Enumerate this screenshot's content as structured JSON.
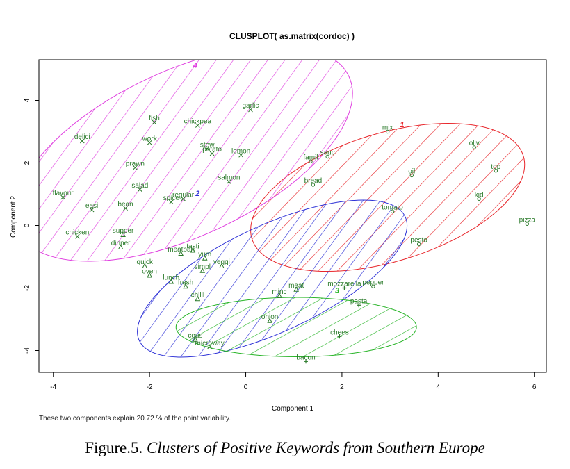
{
  "figure": {
    "label": "Figure.5.",
    "caption": "Clusters of Positive Keywords from Southern Europe",
    "footnote": "These two components explain 20.72 % of the point variability."
  },
  "chart_data": {
    "type": "scatter",
    "title": "CLUSPLOT( as.matrix(cordoc) )",
    "xlabel": "Component 1",
    "ylabel": "Component 2",
    "xlim": [
      -4.3,
      6.25
    ],
    "ylim": [
      -4.7,
      5.3
    ],
    "xticks": [
      -4,
      -2,
      0,
      2,
      4,
      6
    ],
    "yticks": [
      -4,
      -2,
      0,
      2,
      4
    ],
    "grid": false,
    "colors": {
      "c1": "#e8262b",
      "c2": "#2b2fd6",
      "c3": "#27b427",
      "c4": "#e040e0",
      "points": "#2a7a2a"
    },
    "clusters": [
      {
        "label": "1",
        "color": "#e8262b",
        "cx": 2.95,
        "cy": 0.9,
        "rx": 2.95,
        "ry": 2.05,
        "angle": -17,
        "label_x": 3.25,
        "label_y": 3.15
      },
      {
        "label": "2",
        "color": "#2b2fd6",
        "cx": 0.55,
        "cy": -1.7,
        "rx": 3.05,
        "ry": 1.7,
        "angle": -25,
        "label_x": -1.0,
        "label_y": 0.95
      },
      {
        "label": "3",
        "color": "#27b427",
        "cx": 1.05,
        "cy": -3.25,
        "rx": 2.5,
        "ry": 0.95,
        "angle": 0,
        "label_x": 1.9,
        "label_y": -2.15
      },
      {
        "label": "4",
        "color": "#e040e0",
        "cx": -1.3,
        "cy": 2.3,
        "rx": 3.8,
        "ry": 2.65,
        "angle": -25,
        "label_x": -1.05,
        "label_y": 5.05
      }
    ],
    "points": [
      {
        "label": "garlic",
        "x": 0.1,
        "y": 3.7,
        "m": "x"
      },
      {
        "label": "fish",
        "x": -1.9,
        "y": 3.3,
        "m": "x"
      },
      {
        "label": "chickpea",
        "x": -1.0,
        "y": 3.2,
        "m": "x"
      },
      {
        "label": "delici",
        "x": -3.4,
        "y": 2.7,
        "m": "x"
      },
      {
        "label": "work",
        "x": -2.0,
        "y": 2.65,
        "m": "x"
      },
      {
        "label": "stew",
        "x": -0.8,
        "y": 2.45,
        "m": "x"
      },
      {
        "label": "potato",
        "x": -0.7,
        "y": 2.3,
        "m": "x"
      },
      {
        "label": "lemon",
        "x": -0.1,
        "y": 2.25,
        "m": "x"
      },
      {
        "label": "prawn",
        "x": -2.3,
        "y": 1.85,
        "m": "x"
      },
      {
        "label": "salmon",
        "x": -0.35,
        "y": 1.4,
        "m": "x"
      },
      {
        "label": "salad",
        "x": -2.2,
        "y": 1.15,
        "m": "x"
      },
      {
        "label": "flavour",
        "x": -3.8,
        "y": 0.9,
        "m": "x"
      },
      {
        "label": "regular",
        "x": -1.3,
        "y": 0.85,
        "m": "x"
      },
      {
        "label": "spice",
        "x": -1.55,
        "y": 0.75,
        "m": "x"
      },
      {
        "label": "easi",
        "x": -3.2,
        "y": 0.5,
        "m": "x"
      },
      {
        "label": "bean",
        "x": -2.5,
        "y": 0.55,
        "m": "x"
      },
      {
        "label": "chicken",
        "x": -3.5,
        "y": -0.35,
        "m": "x"
      },
      {
        "label": "supper",
        "x": -2.55,
        "y": -0.3,
        "m": "triangle"
      },
      {
        "label": "dinner",
        "x": -2.6,
        "y": -0.7,
        "m": "triangle"
      },
      {
        "label": "tasti",
        "x": -1.1,
        "y": -0.8,
        "m": "triangle"
      },
      {
        "label": "meatball",
        "x": -1.35,
        "y": -0.9,
        "m": "triangle"
      },
      {
        "label": "yum",
        "x": -0.85,
        "y": -1.05,
        "m": "triangle"
      },
      {
        "label": "veggi",
        "x": -0.5,
        "y": -1.3,
        "m": "triangle"
      },
      {
        "label": "quick",
        "x": -2.1,
        "y": -1.3,
        "m": "triangle"
      },
      {
        "label": "simpl",
        "x": -0.9,
        "y": -1.45,
        "m": "triangle"
      },
      {
        "label": "oven",
        "x": -2.0,
        "y": -1.6,
        "m": "triangle"
      },
      {
        "label": "lunch",
        "x": -1.55,
        "y": -1.8,
        "m": "triangle"
      },
      {
        "label": "fresh",
        "x": -1.25,
        "y": -1.95,
        "m": "triangle"
      },
      {
        "label": "chilli",
        "x": -1.0,
        "y": -2.35,
        "m": "triangle"
      },
      {
        "label": "meat",
        "x": 1.05,
        "y": -2.05,
        "m": "triangle"
      },
      {
        "label": "minc",
        "x": 0.7,
        "y": -2.25,
        "m": "triangle"
      },
      {
        "label": "cous",
        "x": -1.05,
        "y": -3.65,
        "m": "triangle"
      },
      {
        "label": "microway",
        "x": -0.75,
        "y": -3.9,
        "m": "triangle"
      },
      {
        "label": "onion",
        "x": 0.5,
        "y": -3.05,
        "m": "triangle"
      },
      {
        "label": "mozzarella",
        "x": 2.05,
        "y": -2.0,
        "m": "plus"
      },
      {
        "label": "pasta",
        "x": 2.35,
        "y": -2.55,
        "m": "plus"
      },
      {
        "label": "chees",
        "x": 1.95,
        "y": -3.55,
        "m": "plus"
      },
      {
        "label": "bacon",
        "x": 1.25,
        "y": -4.35,
        "m": "plus"
      },
      {
        "label": "mix",
        "x": 2.95,
        "y": 3.0,
        "m": "circle"
      },
      {
        "label": "famil",
        "x": 1.35,
        "y": 2.05,
        "m": "circle"
      },
      {
        "label": "sauc",
        "x": 1.7,
        "y": 2.2,
        "m": "circle"
      },
      {
        "label": "oliv",
        "x": 4.75,
        "y": 2.5,
        "m": "circle"
      },
      {
        "label": "top",
        "x": 5.2,
        "y": 1.75,
        "m": "circle"
      },
      {
        "label": "oil",
        "x": 3.45,
        "y": 1.6,
        "m": "circle"
      },
      {
        "label": "bread",
        "x": 1.4,
        "y": 1.3,
        "m": "circle"
      },
      {
        "label": "kid",
        "x": 4.85,
        "y": 0.85,
        "m": "circle"
      },
      {
        "label": "tomato",
        "x": 3.05,
        "y": 0.45,
        "m": "circle"
      },
      {
        "label": "pizza",
        "x": 5.85,
        "y": 0.05,
        "m": "circle"
      },
      {
        "label": "pesto",
        "x": 3.6,
        "y": -0.6,
        "m": "circle"
      },
      {
        "label": "pepper",
        "x": 2.65,
        "y": -1.95,
        "m": "circle"
      }
    ]
  }
}
